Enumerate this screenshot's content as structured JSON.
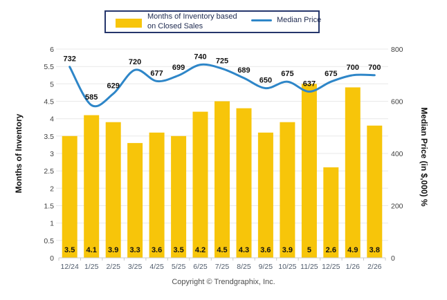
{
  "legend": {
    "bar_label": "Months of Inventory based on Closed Sales",
    "line_label": "Median Price"
  },
  "footer": {
    "copyright": "Copyright © Trendgraphix, Inc."
  },
  "colors": {
    "bar": "#F7C50A",
    "line": "#2E86C8",
    "legend_border": "#24356B",
    "grid": "#E8E8E8",
    "axis_line": "#C9C9C9",
    "data_label_text": "#111111",
    "y_tick_text": "#404040",
    "x_tick_text": "#4F5B6B",
    "footer_text": "#4D4D4D"
  },
  "chart_data": {
    "type": "bar+line",
    "categories": [
      "12/24",
      "1/25",
      "2/25",
      "3/25",
      "4/25",
      "5/25",
      "6/25",
      "7/25",
      "8/25",
      "9/25",
      "10/25",
      "11/25",
      "12/25",
      "1/26",
      "2/26"
    ],
    "series": [
      {
        "name": "Months of Inventory based on Closed Sales",
        "type": "bar",
        "axis": "left",
        "values": [
          3.5,
          4.1,
          3.9,
          3.3,
          3.6,
          3.5,
          4.2,
          4.5,
          4.3,
          3.6,
          3.9,
          5,
          2.6,
          4.9,
          3.8
        ]
      },
      {
        "name": "Median Price",
        "type": "line",
        "axis": "right",
        "values": [
          732,
          585,
          629,
          720,
          677,
          699,
          740,
          725,
          689,
          650,
          675,
          637,
          675,
          700,
          700
        ]
      }
    ],
    "left_axis": {
      "title": "Months of Inventory",
      "min": 0,
      "max": 6,
      "tick_step": 0.5
    },
    "right_axis": {
      "title": "Median Price (in $,000) %",
      "min": 0,
      "max": 800,
      "tick_step": 200
    },
    "grid": true,
    "legend_position": "top",
    "data_labels": true
  }
}
